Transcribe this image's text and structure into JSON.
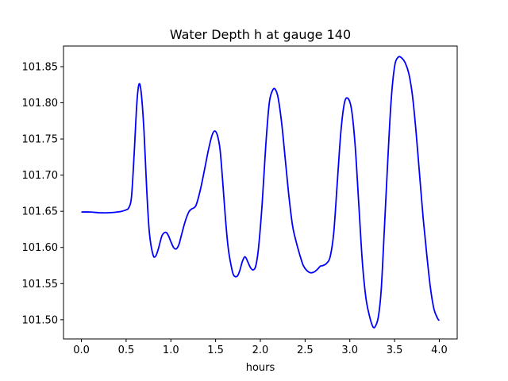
{
  "chart_data": {
    "type": "line",
    "title": "Water Depth h at gauge 140",
    "xlabel": "hours",
    "ylabel": "",
    "xlim": [
      -0.2,
      4.2
    ],
    "ylim": [
      101.4735,
      101.8785
    ],
    "xticks": [
      0.0,
      0.5,
      1.0,
      1.5,
      2.0,
      2.5,
      3.0,
      3.5,
      4.0
    ],
    "xtick_labels": [
      "0.0",
      "0.5",
      "1.0",
      "1.5",
      "2.0",
      "2.5",
      "3.0",
      "3.5",
      "4.0"
    ],
    "yticks": [
      101.5,
      101.55,
      101.6,
      101.65,
      101.7,
      101.75,
      101.8,
      101.85
    ],
    "ytick_labels": [
      "101.50",
      "101.55",
      "101.60",
      "101.65",
      "101.70",
      "101.75",
      "101.80",
      "101.85"
    ],
    "grid": false,
    "legend": "none",
    "series": [
      {
        "color": "#0000ff",
        "x": [
          0.0,
          0.1,
          0.2,
          0.3,
          0.4,
          0.45,
          0.5,
          0.53,
          0.56,
          0.59,
          0.62,
          0.645,
          0.67,
          0.7,
          0.73,
          0.76,
          0.8,
          0.83,
          0.86,
          0.9,
          0.94,
          0.97,
          1.0,
          1.03,
          1.06,
          1.09,
          1.12,
          1.16,
          1.2,
          1.23,
          1.28,
          1.33,
          1.38,
          1.42,
          1.46,
          1.49,
          1.52,
          1.55,
          1.58,
          1.61,
          1.64,
          1.67,
          1.7,
          1.74,
          1.77,
          1.8,
          1.83,
          1.86,
          1.89,
          1.92,
          1.95,
          1.98,
          2.02,
          2.06,
          2.1,
          2.14,
          2.17,
          2.2,
          2.24,
          2.28,
          2.32,
          2.36,
          2.4,
          2.44,
          2.48,
          2.52,
          2.56,
          2.6,
          2.64,
          2.67,
          2.7,
          2.74,
          2.78,
          2.82,
          2.86,
          2.9,
          2.94,
          2.98,
          3.02,
          3.06,
          3.1,
          3.14,
          3.18,
          3.22,
          3.26,
          3.29,
          3.32,
          3.35,
          3.38,
          3.42,
          3.46,
          3.5,
          3.54,
          3.58,
          3.62,
          3.66,
          3.7,
          3.74,
          3.78,
          3.82,
          3.86,
          3.9,
          3.94,
          3.98,
          4.0
        ],
        "y": [
          101.649,
          101.649,
          101.648,
          101.648,
          101.649,
          101.65,
          101.652,
          101.655,
          101.67,
          101.73,
          101.8,
          101.826,
          101.812,
          101.76,
          101.68,
          101.62,
          101.59,
          101.588,
          101.598,
          101.616,
          101.621,
          101.617,
          101.608,
          101.6,
          101.598,
          101.604,
          101.618,
          101.636,
          101.649,
          101.653,
          101.658,
          101.68,
          101.71,
          101.735,
          101.755,
          101.761,
          101.755,
          101.735,
          101.69,
          101.64,
          101.6,
          101.577,
          101.562,
          101.56,
          101.568,
          101.581,
          101.587,
          101.58,
          101.572,
          101.569,
          101.575,
          101.6,
          101.66,
          101.74,
          101.8,
          101.818,
          101.818,
          101.806,
          101.77,
          101.72,
          101.67,
          101.63,
          101.608,
          101.59,
          101.575,
          101.568,
          101.565,
          101.566,
          101.57,
          101.574,
          101.575,
          101.578,
          101.587,
          101.62,
          101.69,
          101.76,
          101.8,
          101.806,
          101.79,
          101.74,
          101.66,
          101.58,
          101.53,
          101.505,
          101.49,
          101.492,
          101.505,
          101.54,
          101.61,
          101.71,
          101.8,
          101.85,
          101.863,
          101.862,
          101.855,
          101.84,
          101.81,
          101.76,
          101.7,
          101.64,
          101.59,
          101.545,
          101.515,
          101.502,
          101.499
        ]
      }
    ]
  }
}
